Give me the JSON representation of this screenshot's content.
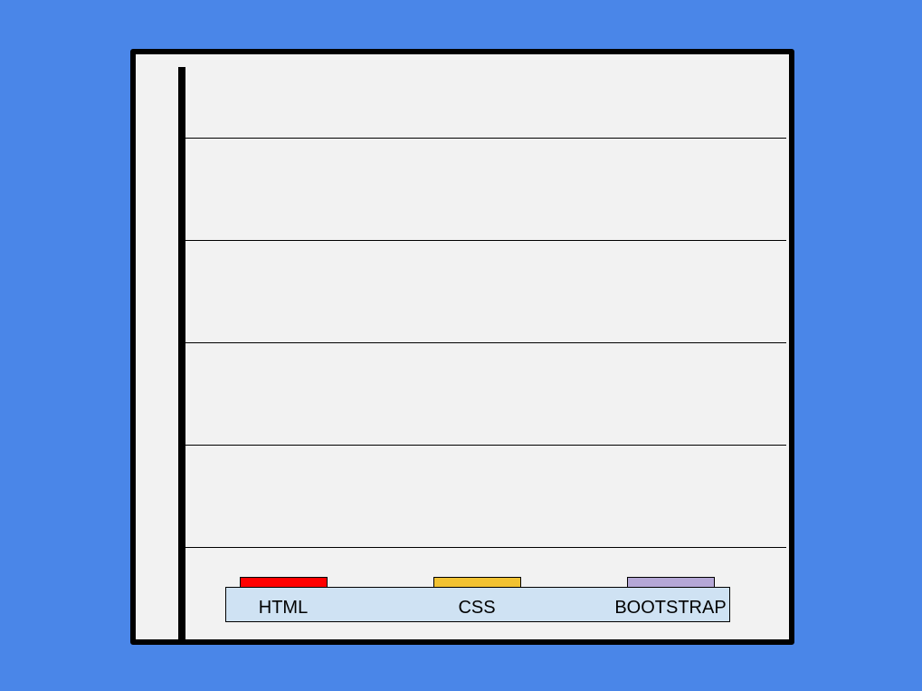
{
  "colors": {
    "background": "#4a86e8",
    "plot_background": "#f2f2f2",
    "axis": "#000000",
    "gridline": "#000000",
    "label_strip": "#cfe2f3"
  },
  "chart_data": {
    "type": "bar",
    "title": "",
    "xlabel": "",
    "ylabel": "",
    "categories": [
      "HTML",
      "CSS",
      "BOOTSTRAP"
    ],
    "values": [
      0,
      0,
      0
    ],
    "bar_colors": [
      "#ff0000",
      "#f1c232",
      "#b4a7d6"
    ],
    "gridlines": 5,
    "grid": true,
    "legend": "none"
  }
}
